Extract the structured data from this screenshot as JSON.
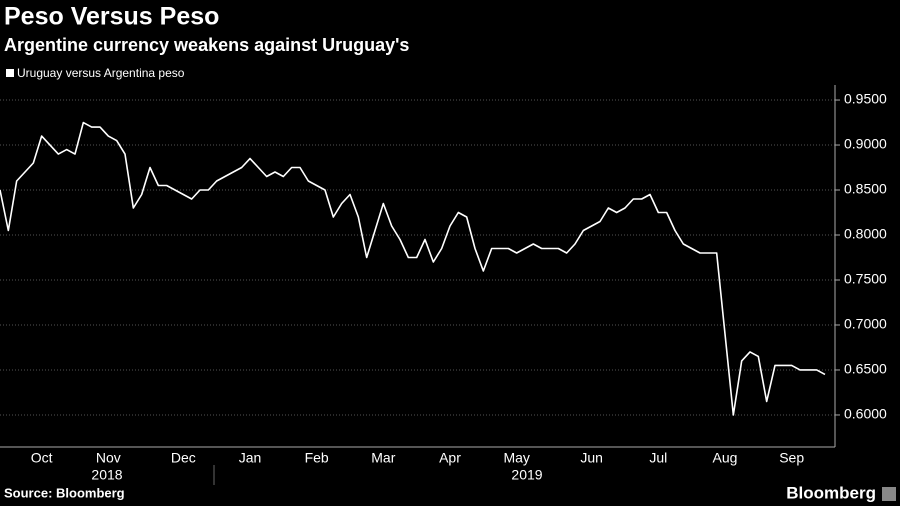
{
  "chart_data": {
    "type": "line",
    "title": "Peso Versus Peso",
    "subtitle": "Argentine currency weakens against Uruguay's",
    "categories": [
      null,
      null,
      null,
      null,
      null,
      "Oct",
      null,
      null,
      null,
      null,
      null,
      null,
      null,
      "Nov",
      null,
      null,
      null,
      null,
      null,
      null,
      null,
      null,
      "Dec",
      null,
      null,
      null,
      null,
      null,
      null,
      null,
      "Jan",
      null,
      null,
      null,
      null,
      null,
      null,
      null,
      "Feb",
      null,
      null,
      null,
      null,
      null,
      null,
      null,
      "Mar",
      null,
      null,
      null,
      null,
      null,
      null,
      null,
      "Apr",
      null,
      null,
      null,
      null,
      null,
      null,
      null,
      "May",
      null,
      null,
      null,
      null,
      null,
      null,
      null,
      null,
      "Jun",
      null,
      null,
      null,
      null,
      null,
      null,
      null,
      "Jul",
      null,
      null,
      null,
      null,
      null,
      null,
      null,
      "Aug",
      null,
      null,
      null,
      null,
      null,
      null,
      null,
      "Sep",
      null,
      null,
      null,
      null
    ],
    "x_years": [
      "2018",
      "2019"
    ],
    "series": [
      {
        "name": "Uruguay versus Argentina peso",
        "color": "#ffffff",
        "values": [
          0.85,
          0.805,
          0.86,
          0.87,
          0.88,
          0.91,
          0.9,
          0.89,
          0.895,
          0.89,
          0.925,
          0.92,
          0.92,
          0.91,
          0.905,
          0.89,
          0.83,
          0.845,
          0.875,
          0.855,
          0.855,
          0.85,
          0.845,
          0.84,
          0.85,
          0.85,
          0.86,
          0.865,
          0.87,
          0.875,
          0.885,
          0.875,
          0.865,
          0.87,
          0.865,
          0.875,
          0.875,
          0.86,
          0.855,
          0.85,
          0.82,
          0.835,
          0.845,
          0.82,
          0.775,
          0.805,
          0.835,
          0.81,
          0.795,
          0.775,
          0.775,
          0.795,
          0.77,
          0.785,
          0.81,
          0.825,
          0.82,
          0.785,
          0.76,
          0.785,
          0.785,
          0.785,
          0.78,
          0.785,
          0.79,
          0.785,
          0.785,
          0.785,
          0.78,
          0.79,
          0.805,
          0.81,
          0.815,
          0.83,
          0.825,
          0.83,
          0.84,
          0.84,
          0.845,
          0.825,
          0.825,
          0.805,
          0.79,
          0.785,
          0.78,
          0.78,
          0.78,
          0.69,
          0.6,
          0.66,
          0.67,
          0.665,
          0.615,
          0.655,
          0.655,
          0.655,
          0.65,
          0.65,
          0.65,
          0.645
        ]
      }
    ],
    "ylim": [
      0.5644,
      0.9667
    ],
    "yticks": [
      {
        "value": 0.6,
        "label": "0.6000"
      },
      {
        "value": 0.65,
        "label": "0.6500"
      },
      {
        "value": 0.7,
        "label": "0.7000"
      },
      {
        "value": 0.75,
        "label": "0.7500"
      },
      {
        "value": 0.8,
        "label": "0.8000"
      },
      {
        "value": 0.85,
        "label": "0.8500"
      },
      {
        "value": 0.9,
        "label": "0.9000"
      },
      {
        "value": 0.95,
        "label": "0.9500"
      }
    ],
    "grid": true,
    "source": "Source: Bloomberg",
    "brand": "Bloomberg"
  }
}
